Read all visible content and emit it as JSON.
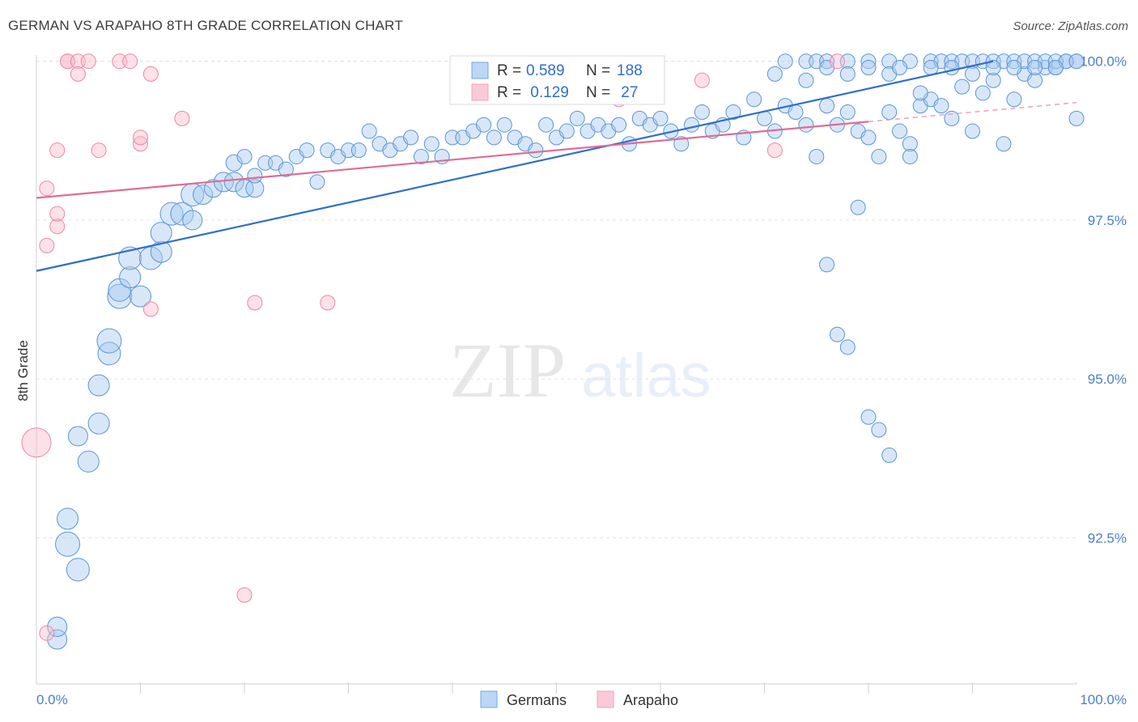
{
  "header": {
    "title": "GERMAN VS ARAPAHO 8TH GRADE CORRELATION CHART",
    "source": "Source: ZipAtlas.com"
  },
  "watermark": {
    "zip": "ZIP",
    "atlas": "atlas"
  },
  "legend_box": {
    "rows": [
      {
        "r_label": "R = ",
        "r_value": "0.589",
        "n_label": "N = ",
        "n_value": "188",
        "color": "#6fa8dc"
      },
      {
        "r_label": "R = ",
        "r_value": " 0.129",
        "n_label": "N = ",
        "n_value": " 27",
        "color": "#f4a0b8"
      }
    ]
  },
  "chart_data": {
    "type": "scatter",
    "title": "GERMAN VS ARAPAHO 8TH GRADE CORRELATION CHART",
    "xlabel": "",
    "ylabel": "8th Grade",
    "xlim": [
      0,
      100
    ],
    "ylim": [
      90.2,
      100.2
    ],
    "x_tick_labels": [
      "0.0%",
      "100.0%"
    ],
    "y_ticks": [
      92.5,
      95.0,
      97.5,
      100.0
    ],
    "y_tick_labels": [
      "92.5%",
      "95.0%",
      "97.5%",
      "100.0%"
    ],
    "grid": true,
    "legend_position": "bottom-center",
    "series": [
      {
        "name": "Germans",
        "color": "#6fa8dc",
        "trend": {
          "x0": 0,
          "y0": 96.7,
          "x1": 92,
          "y1": 100.0
        },
        "points": [
          [
            2,
            90.9,
            12
          ],
          [
            2,
            91.1,
            12
          ],
          [
            4,
            92.0,
            14
          ],
          [
            3,
            92.4,
            15
          ],
          [
            3,
            92.8,
            13
          ],
          [
            5,
            93.7,
            13
          ],
          [
            4,
            94.1,
            12
          ],
          [
            6,
            94.3,
            13
          ],
          [
            6,
            94.9,
            13
          ],
          [
            7,
            95.4,
            14
          ],
          [
            7,
            95.6,
            15
          ],
          [
            8,
            96.3,
            15
          ],
          [
            8,
            96.4,
            14
          ],
          [
            9,
            96.6,
            13
          ],
          [
            10,
            96.3,
            13
          ],
          [
            9,
            96.9,
            14
          ],
          [
            11,
            96.9,
            14
          ],
          [
            12,
            97.0,
            13
          ],
          [
            12,
            97.3,
            13
          ],
          [
            13,
            97.6,
            14
          ],
          [
            14,
            97.6,
            14
          ],
          [
            15,
            97.5,
            12
          ],
          [
            15,
            97.9,
            14
          ],
          [
            16,
            97.9,
            12
          ],
          [
            17,
            98.0,
            11
          ],
          [
            18,
            98.1,
            12
          ],
          [
            19,
            98.1,
            12
          ],
          [
            20,
            98.0,
            11
          ],
          [
            21,
            98.0,
            11
          ],
          [
            19,
            98.4,
            10
          ],
          [
            20,
            98.5,
            9
          ],
          [
            21,
            98.2,
            9
          ],
          [
            22,
            98.4,
            9
          ],
          [
            23,
            98.4,
            9
          ],
          [
            24,
            98.3,
            9
          ],
          [
            25,
            98.5,
            9
          ],
          [
            26,
            98.6,
            9
          ],
          [
            27,
            98.1,
            9
          ],
          [
            28,
            98.6,
            9
          ],
          [
            29,
            98.5,
            9
          ],
          [
            30,
            98.6,
            9
          ],
          [
            31,
            98.6,
            9
          ],
          [
            32,
            98.9,
            9
          ],
          [
            33,
            98.7,
            9
          ],
          [
            34,
            98.6,
            9
          ],
          [
            35,
            98.7,
            9
          ],
          [
            36,
            98.8,
            9
          ],
          [
            37,
            98.5,
            9
          ],
          [
            38,
            98.7,
            9
          ],
          [
            39,
            98.5,
            9
          ],
          [
            40,
            98.8,
            9
          ],
          [
            41,
            98.8,
            9
          ],
          [
            42,
            98.9,
            9
          ],
          [
            43,
            99.0,
            9
          ],
          [
            44,
            98.8,
            9
          ],
          [
            45,
            99.0,
            9
          ],
          [
            46,
            98.8,
            9
          ],
          [
            47,
            98.7,
            9
          ],
          [
            48,
            98.6,
            9
          ],
          [
            49,
            99.0,
            9
          ],
          [
            50,
            98.8,
            9
          ],
          [
            51,
            98.9,
            9
          ],
          [
            52,
            99.1,
            9
          ],
          [
            53,
            98.9,
            9
          ],
          [
            54,
            99.0,
            9
          ],
          [
            55,
            98.9,
            9
          ],
          [
            56,
            99.0,
            9
          ],
          [
            57,
            98.7,
            9
          ],
          [
            58,
            99.1,
            9
          ],
          [
            59,
            99.0,
            9
          ],
          [
            60,
            99.1,
            9
          ],
          [
            61,
            98.9,
            9
          ],
          [
            62,
            98.7,
            9
          ],
          [
            63,
            99.0,
            9
          ],
          [
            64,
            99.2,
            9
          ],
          [
            65,
            98.9,
            9
          ],
          [
            66,
            99.0,
            9
          ],
          [
            67,
            99.2,
            9
          ],
          [
            68,
            98.8,
            9
          ],
          [
            69,
            99.4,
            9
          ],
          [
            70,
            99.1,
            9
          ],
          [
            71,
            98.9,
            9
          ],
          [
            72,
            99.3,
            9
          ],
          [
            73,
            99.2,
            9
          ],
          [
            74,
            99.0,
            9
          ],
          [
            75,
            98.5,
            9
          ],
          [
            76,
            99.3,
            9
          ],
          [
            77,
            99.0,
            9
          ],
          [
            78,
            99.2,
            9
          ],
          [
            79,
            98.9,
            9
          ],
          [
            80,
            98.8,
            9
          ],
          [
            81,
            98.5,
            9
          ],
          [
            82,
            99.2,
            9
          ],
          [
            83,
            98.9,
            9
          ],
          [
            84,
            98.7,
            9
          ],
          [
            85,
            99.3,
            9
          ],
          [
            86,
            99.4,
            9
          ],
          [
            87,
            99.3,
            9
          ],
          [
            88,
            99.1,
            9
          ],
          [
            89,
            99.6,
            9
          ],
          [
            90,
            98.9,
            9
          ],
          [
            91,
            99.5,
            9
          ],
          [
            92,
            99.7,
            9
          ],
          [
            93,
            98.7,
            9
          ],
          [
            94,
            99.4,
            9
          ],
          [
            95,
            99.8,
            9
          ],
          [
            96,
            99.7,
            9
          ],
          [
            97,
            99.9,
            9
          ],
          [
            98,
            99.9,
            9
          ],
          [
            99,
            100.0,
            9
          ],
          [
            100,
            100.0,
            9
          ],
          [
            100,
            99.1,
            9
          ],
          [
            76,
            96.8,
            9
          ],
          [
            77,
            95.7,
            9
          ],
          [
            78,
            95.5,
            9
          ],
          [
            80,
            94.4,
            9
          ],
          [
            81,
            94.2,
            9
          ],
          [
            82,
            93.8,
            9
          ],
          [
            79,
            97.7,
            9
          ],
          [
            84,
            98.5,
            9
          ],
          [
            85,
            99.5,
            9
          ],
          [
            71,
            99.8,
            9
          ],
          [
            72,
            100.0,
            9
          ],
          [
            74,
            100.0,
            9
          ],
          [
            75,
            100.0,
            9
          ],
          [
            76,
            100.0,
            9
          ],
          [
            78,
            100.0,
            9
          ],
          [
            80,
            100.0,
            9
          ],
          [
            82,
            100.0,
            9
          ],
          [
            84,
            100.0,
            9
          ],
          [
            86,
            100.0,
            9
          ],
          [
            87,
            100.0,
            9
          ],
          [
            88,
            100.0,
            9
          ],
          [
            89,
            100.0,
            9
          ],
          [
            90,
            100.0,
            9
          ],
          [
            91,
            100.0,
            9
          ],
          [
            92,
            100.0,
            9
          ],
          [
            93,
            100.0,
            9
          ],
          [
            94,
            100.0,
            9
          ],
          [
            95,
            100.0,
            9
          ],
          [
            96,
            100.0,
            9
          ],
          [
            97,
            100.0,
            9
          ],
          [
            98,
            100.0,
            9
          ],
          [
            99,
            100.0,
            9
          ],
          [
            100,
            100.0,
            9
          ],
          [
            74,
            99.7,
            9
          ],
          [
            76,
            99.9,
            9
          ],
          [
            78,
            99.8,
            9
          ],
          [
            80,
            99.9,
            9
          ],
          [
            82,
            99.8,
            9
          ],
          [
            83,
            99.9,
            9
          ],
          [
            86,
            99.9,
            9
          ],
          [
            88,
            99.9,
            9
          ],
          [
            90,
            99.8,
            9
          ],
          [
            92,
            99.9,
            9
          ],
          [
            94,
            99.9,
            9
          ],
          [
            96,
            99.9,
            9
          ],
          [
            98,
            99.9,
            9
          ]
        ]
      },
      {
        "name": "Arapaho",
        "color": "#f4a0b8",
        "trend": {
          "x0": 0,
          "y0": 97.85,
          "x1": 80,
          "y1": 99.05,
          "dash_to_x": 100,
          "dash_to_y": 99.35
        },
        "points": [
          [
            0,
            94.0,
            18
          ],
          [
            1,
            91.0,
            9
          ],
          [
            1,
            97.1,
            9
          ],
          [
            1,
            98.0,
            9
          ],
          [
            2,
            97.4,
            9
          ],
          [
            2,
            98.6,
            9
          ],
          [
            2,
            97.6,
            9
          ],
          [
            3,
            100.0,
            9
          ],
          [
            3,
            100.0,
            9
          ],
          [
            4,
            100.0,
            9
          ],
          [
            4,
            99.8,
            9
          ],
          [
            5,
            100.0,
            9
          ],
          [
            6,
            98.6,
            9
          ],
          [
            8,
            100.0,
            9
          ],
          [
            9,
            100.0,
            9
          ],
          [
            10,
            98.7,
            9
          ],
          [
            10,
            98.8,
            9
          ],
          [
            11,
            99.8,
            9
          ],
          [
            11,
            96.1,
            9
          ],
          [
            14,
            99.1,
            9
          ],
          [
            20,
            91.6,
            9
          ],
          [
            21,
            96.2,
            9
          ],
          [
            28,
            96.2,
            9
          ],
          [
            64,
            99.7,
            9
          ],
          [
            71,
            98.6,
            9
          ],
          [
            77,
            100.0,
            9
          ],
          [
            56,
            99.4,
            9
          ]
        ]
      }
    ]
  },
  "bottom_legend": {
    "items": [
      {
        "label": "Germans",
        "color": "#6fa8dc"
      },
      {
        "label": "Arapaho",
        "color": "#f4a0b8"
      }
    ]
  }
}
